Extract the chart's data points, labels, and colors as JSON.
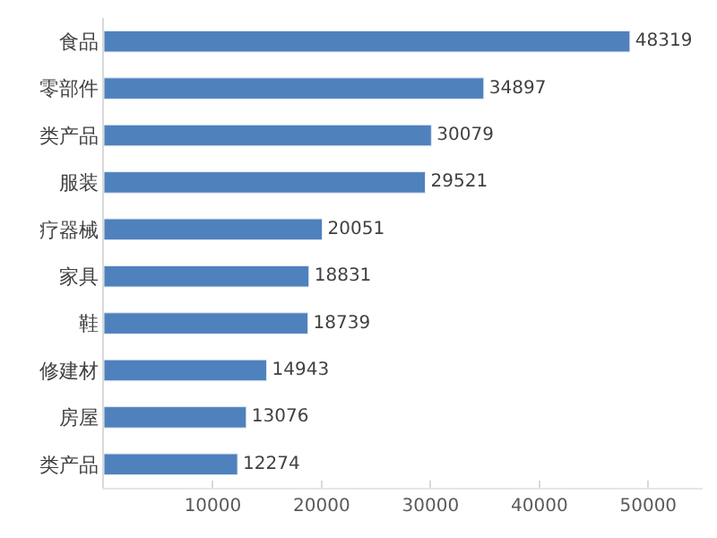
{
  "chart_data": {
    "type": "bar",
    "orientation": "horizontal",
    "categories": [
      "食品",
      "零部件",
      "类产品",
      "服装",
      "疗器械",
      "家具",
      "鞋",
      "修建材",
      "房屋",
      "类产品"
    ],
    "values": [
      48319,
      34897,
      30079,
      29521,
      20051,
      18831,
      18739,
      14943,
      13076,
      12274
    ],
    "color": "#4f81bd",
    "xlim": [
      0,
      55000
    ],
    "xticks": [
      10000,
      20000,
      30000,
      40000,
      50000
    ],
    "data_labels": true,
    "legend": false
  }
}
